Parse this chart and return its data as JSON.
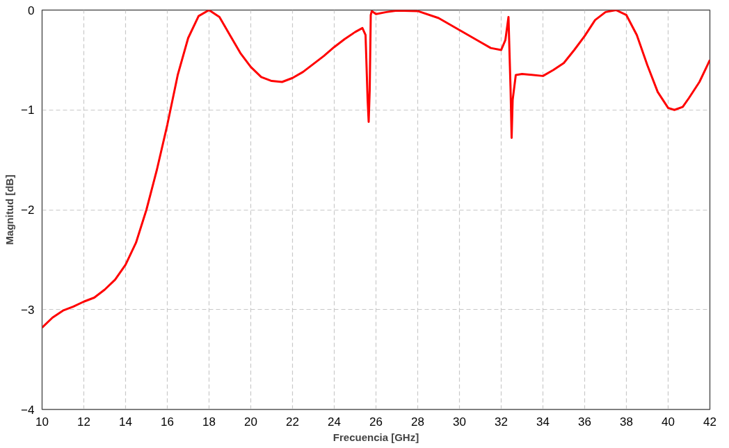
{
  "chart_data": {
    "type": "line",
    "xlabel": "Frecuencia [GHz]",
    "ylabel": "Magnitud [dB]",
    "xlim": [
      10,
      42
    ],
    "ylim": [
      -4,
      0
    ],
    "xticks": [
      10,
      12,
      14,
      16,
      18,
      20,
      22,
      24,
      26,
      28,
      30,
      32,
      34,
      36,
      38,
      40,
      42
    ],
    "yticks": [
      -4,
      -3,
      -2,
      -1,
      0
    ],
    "grid": true,
    "line_style": "solid",
    "marker": "none",
    "series": [
      {
        "color": "#ff0000",
        "x": [
          10,
          10.5,
          11,
          11.5,
          12,
          12.5,
          13,
          13.5,
          14,
          14.5,
          15,
          15.5,
          16,
          16.5,
          17,
          17.5,
          18,
          18.5,
          19,
          19.5,
          20,
          20.5,
          21,
          21.5,
          22,
          22.5,
          23,
          23.5,
          24,
          24.5,
          25,
          25.35,
          25.5,
          25.6,
          25.65,
          25.7,
          25.75,
          25.8,
          26,
          26.5,
          27,
          28,
          29,
          30,
          31,
          31.5,
          32,
          32.2,
          32.35,
          32.45,
          32.5,
          32.55,
          32.7,
          33,
          34,
          34.5,
          35,
          35.5,
          36,
          36.5,
          37,
          37.5,
          38,
          38.5,
          39,
          39.5,
          40,
          40.3,
          40.7,
          41,
          41.5,
          42
        ],
        "values": [
          -3.18,
          -3.08,
          -3.01,
          -2.97,
          -2.92,
          -2.88,
          -2.8,
          -2.7,
          -2.55,
          -2.33,
          -2.0,
          -1.6,
          -1.15,
          -0.65,
          -0.28,
          -0.06,
          0.0,
          -0.07,
          -0.25,
          -0.43,
          -0.57,
          -0.67,
          -0.71,
          -0.72,
          -0.68,
          -0.62,
          -0.54,
          -0.46,
          -0.37,
          -0.29,
          -0.22,
          -0.18,
          -0.25,
          -0.9,
          -1.12,
          -0.8,
          -0.05,
          -0.01,
          -0.04,
          -0.02,
          -0.005,
          -0.01,
          -0.08,
          -0.2,
          -0.32,
          -0.38,
          -0.4,
          -0.3,
          -0.07,
          -0.8,
          -1.28,
          -0.9,
          -0.65,
          -0.64,
          -0.66,
          -0.6,
          -0.53,
          -0.4,
          -0.26,
          -0.1,
          -0.02,
          0.0,
          -0.05,
          -0.25,
          -0.55,
          -0.82,
          -0.98,
          -1.0,
          -0.97,
          -0.88,
          -0.72,
          -0.5
        ]
      }
    ]
  }
}
